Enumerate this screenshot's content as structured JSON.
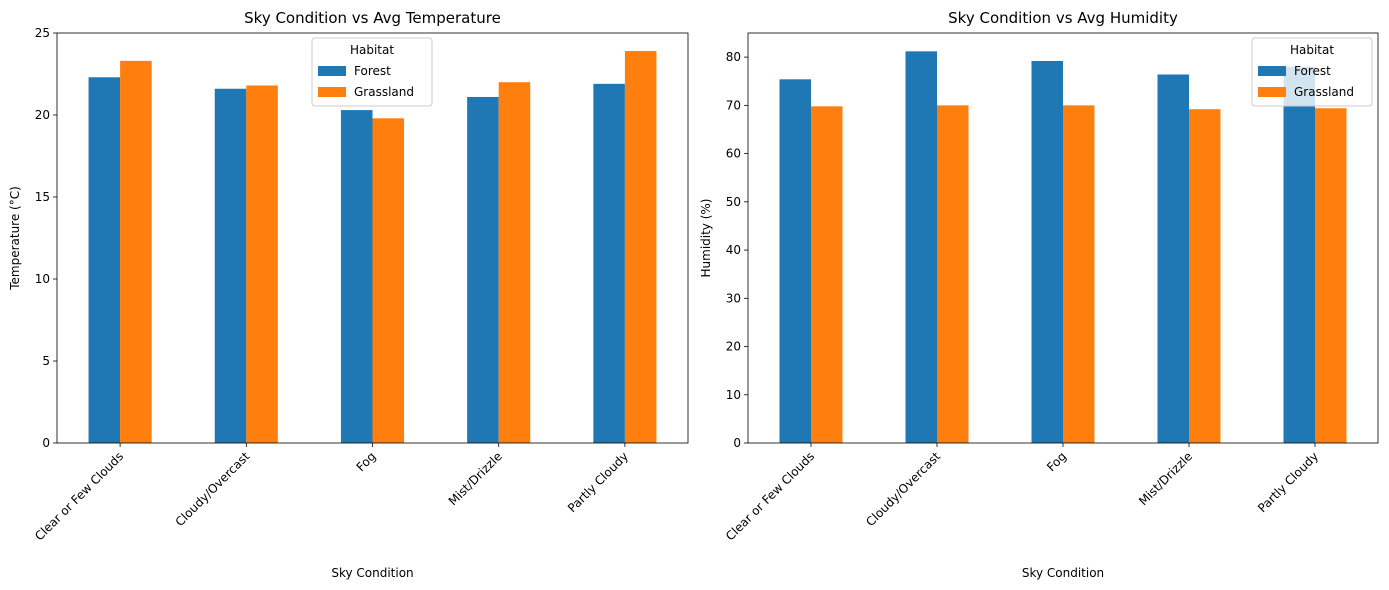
{
  "chart_data": [
    {
      "type": "bar",
      "title": "Sky Condition vs Avg Temperature",
      "xlabel": "Sky Condition",
      "ylabel": "Temperature (°C)",
      "ylim": [
        0,
        25
      ],
      "yticks": [
        0,
        5,
        10,
        15,
        20,
        25
      ],
      "categories": [
        "Clear or Few Clouds",
        "Cloudy/Overcast",
        "Fog",
        "Mist/Drizzle",
        "Partly Cloudy"
      ],
      "legend": {
        "title": "Habitat",
        "placement": "upper-center"
      },
      "grid": false,
      "series": [
        {
          "name": "Forest",
          "color": "#1f77b4",
          "values": [
            22.3,
            21.6,
            20.3,
            21.1,
            21.9
          ]
        },
        {
          "name": "Grassland",
          "color": "#ff7f0e",
          "values": [
            23.3,
            21.8,
            19.8,
            22.0,
            23.9
          ]
        }
      ]
    },
    {
      "type": "bar",
      "title": "Sky Condition vs Avg Humidity",
      "xlabel": "Sky Condition",
      "ylabel": "Humidity (%)",
      "ylim": [
        0,
        85
      ],
      "yticks": [
        0,
        10,
        20,
        30,
        40,
        50,
        60,
        70,
        80
      ],
      "categories": [
        "Clear or Few Clouds",
        "Cloudy/Overcast",
        "Fog",
        "Mist/Drizzle",
        "Partly Cloudy"
      ],
      "legend": {
        "title": "Habitat",
        "placement": "upper-right"
      },
      "grid": false,
      "series": [
        {
          "name": "Forest",
          "color": "#1f77b4",
          "values": [
            75.4,
            81.2,
            79.2,
            76.4,
            78.0
          ]
        },
        {
          "name": "Grassland",
          "color": "#ff7f0e",
          "values": [
            69.8,
            70.0,
            70.0,
            69.2,
            69.4
          ]
        }
      ]
    }
  ]
}
